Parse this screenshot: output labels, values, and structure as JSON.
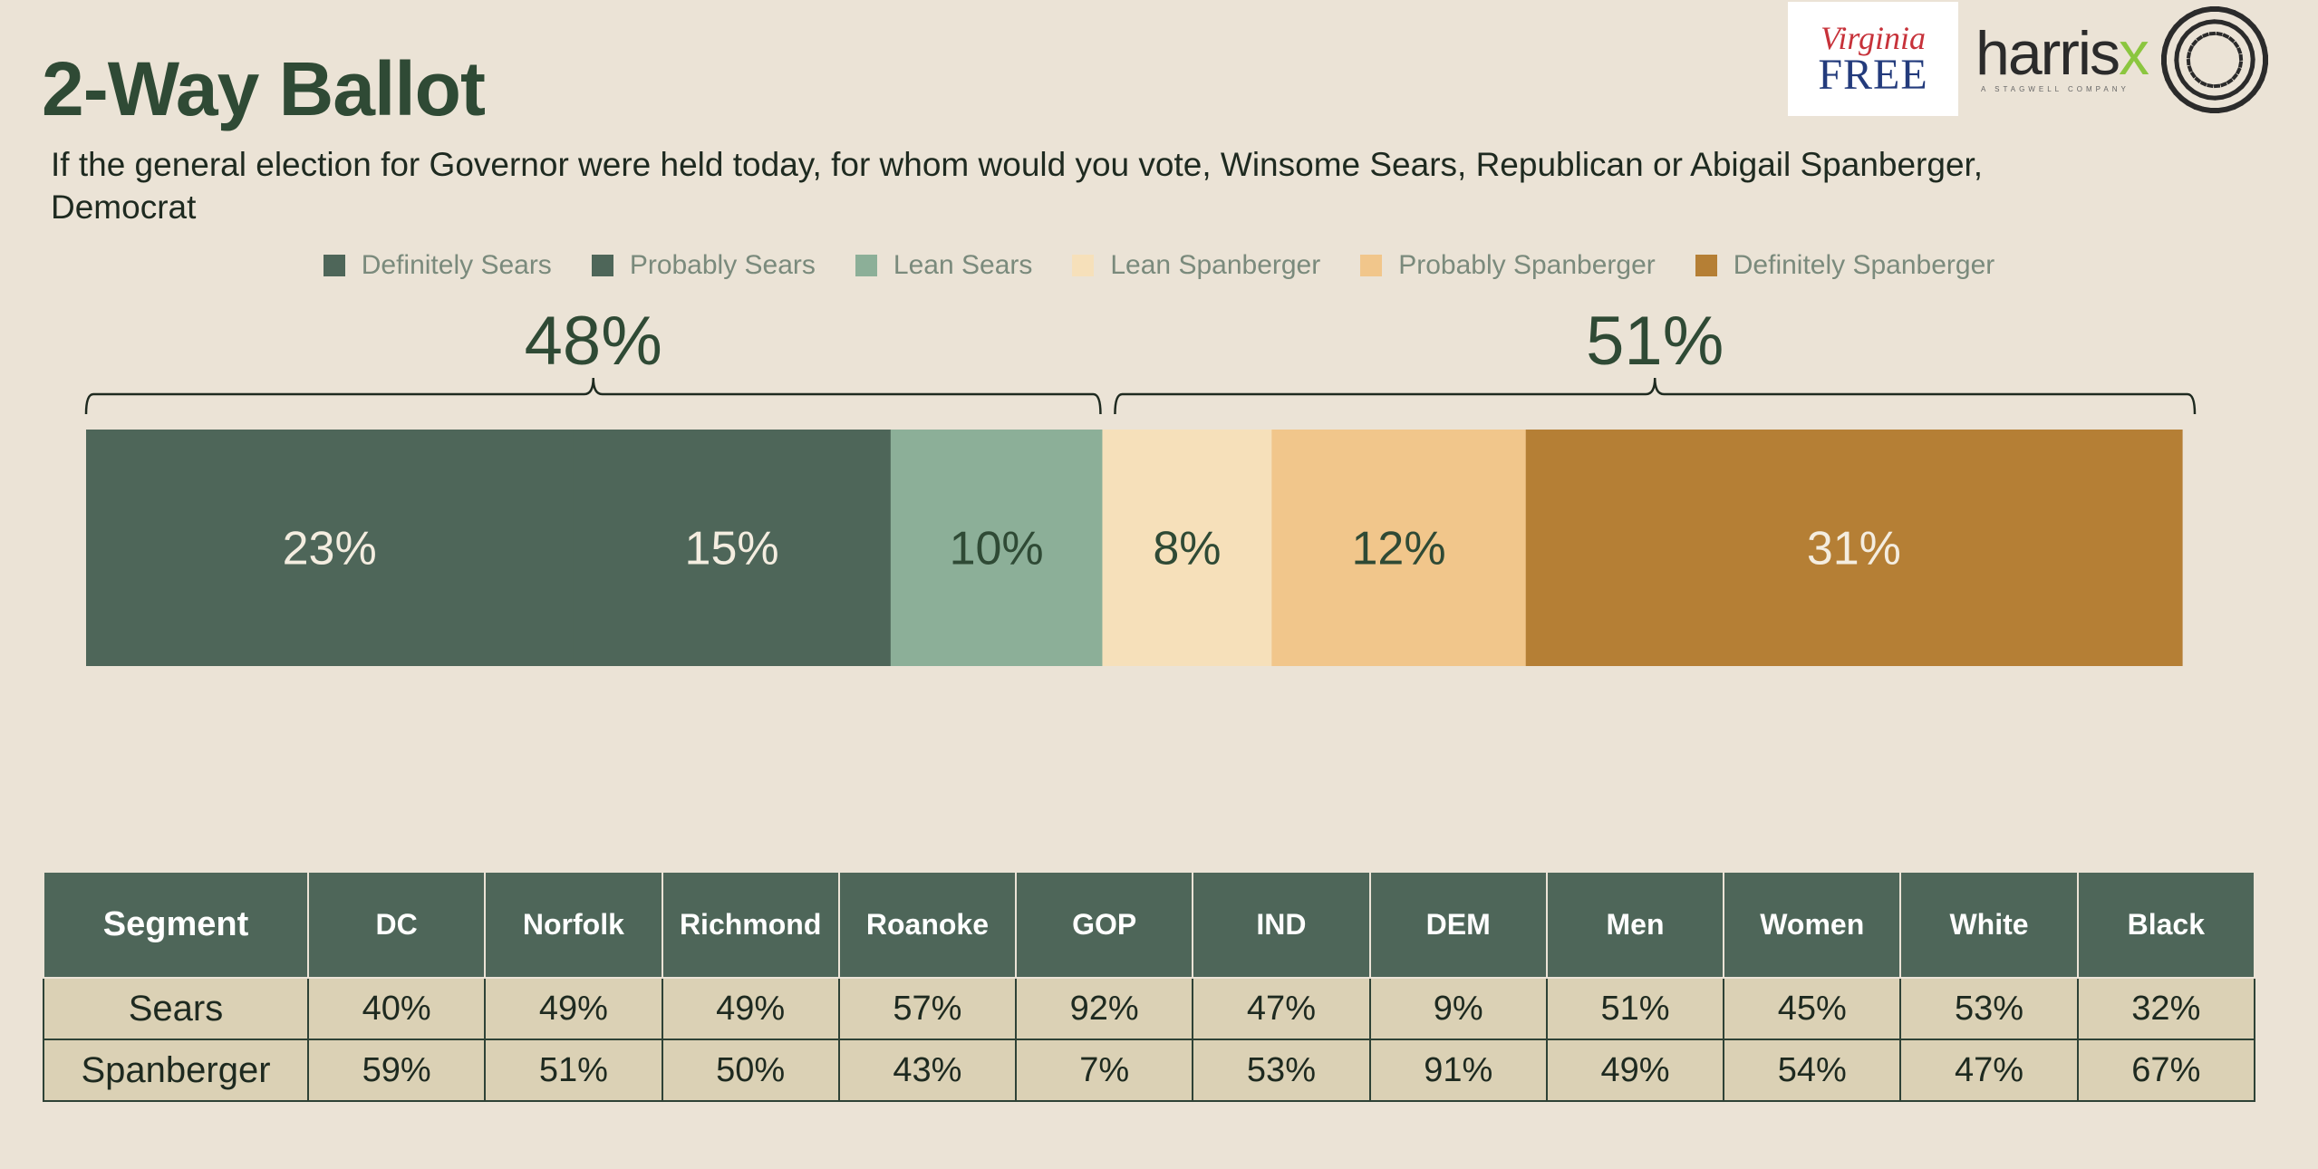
{
  "title": "2-Way Ballot",
  "question": "If the general election for Governor were held today, for whom would you vote, Winsome Sears, Republican or Abigail Spanberger, Democrat",
  "logos": {
    "virginia_free_script": "Virginia",
    "virginia_free_word": "FREE",
    "harrisx_word": "harris",
    "harrisx_x": "x",
    "harrisx_sub": "A STAGWELL COMPANY"
  },
  "chart_data": {
    "type": "bar",
    "orientation": "horizontal-stacked",
    "categories": [
      "Definitely Sears",
      "Probably Sears",
      "Lean Sears",
      "Lean Spanberger",
      "Probably Spanberger",
      "Definitely Spanberger"
    ],
    "series": [
      {
        "name": "Definitely Sears",
        "value": 23,
        "label": "23%",
        "color": "#4e6659",
        "label_color": "#f4ede0"
      },
      {
        "name": "Probably Sears",
        "value": 15,
        "label": "15%",
        "color": "#4e6659",
        "label_color": "#f4ede0"
      },
      {
        "name": "Lean Sears",
        "value": 10,
        "label": "10%",
        "color": "#8caf98",
        "label_color": "#2f4a35"
      },
      {
        "name": "Lean Spanberger",
        "value": 8,
        "label": "8%",
        "color": "#f6e0ba",
        "label_color": "#2f4a35"
      },
      {
        "name": "Probably Spanberger",
        "value": 12,
        "label": "12%",
        "color": "#f1c68b",
        "label_color": "#2f4a35"
      },
      {
        "name": "Definitely Spanberger",
        "value": 31,
        "label": "31%",
        "color": "#b57f35",
        "label_color": "#f4ede0"
      }
    ],
    "totals": [
      {
        "name": "Sears",
        "label": "48%",
        "value": 48,
        "from": 0,
        "to": 3
      },
      {
        "name": "Spanberger",
        "label": "51%",
        "value": 51,
        "from": 3,
        "to": 6
      }
    ],
    "legend_position": "top-center",
    "grid": false
  },
  "table": {
    "headers": [
      "Segment",
      "DC",
      "Norfolk",
      "Richmond",
      "Roanoke",
      "GOP",
      "IND",
      "DEM",
      "Men",
      "Women",
      "White",
      "Black"
    ],
    "rows": [
      {
        "name": "Sears",
        "values": [
          "40%",
          "49%",
          "49%",
          "57%",
          "92%",
          "47%",
          "9%",
          "51%",
          "45%",
          "53%",
          "32%"
        ]
      },
      {
        "name": "Spanberger",
        "values": [
          "59%",
          "51%",
          "50%",
          "43%",
          "7%",
          "53%",
          "91%",
          "49%",
          "54%",
          "47%",
          "67%"
        ]
      }
    ]
  }
}
